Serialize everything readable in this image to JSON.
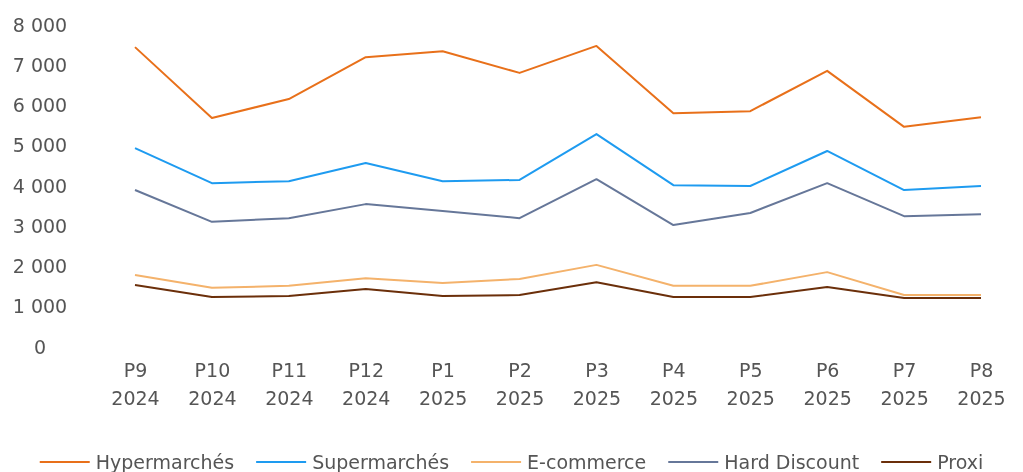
{
  "chart_data": {
    "type": "line",
    "categories": [
      "P9\n2024",
      "P10\n2024",
      "P11\n2024",
      "P12\n2024",
      "P1\n2025",
      "P2\n2025",
      "P3\n2025",
      "P4\n2025",
      "P5\n2025",
      "P6\n2025",
      "P7\n2025",
      "P8\n2025"
    ],
    "series": [
      {
        "name": "Hypermarchés",
        "color": "#e8701a",
        "values": [
          7450,
          5690,
          6160,
          7200,
          7350,
          6810,
          7480,
          5810,
          5860,
          6860,
          5470,
          5710
        ]
      },
      {
        "name": "Supermarchés",
        "color": "#1e9bf0",
        "values": [
          4940,
          4070,
          4120,
          4570,
          4120,
          4150,
          5290,
          4020,
          4000,
          4870,
          3900,
          4000
        ]
      },
      {
        "name": "E-commerce",
        "color": "#f4b26b",
        "values": [
          1790,
          1470,
          1520,
          1710,
          1590,
          1690,
          2040,
          1520,
          1520,
          1860,
          1290,
          1290
        ]
      },
      {
        "name": "Hard Discount",
        "color": "#667799",
        "values": [
          3900,
          3110,
          3200,
          3550,
          3380,
          3200,
          4170,
          3030,
          3330,
          4070,
          3250,
          3300
        ]
      },
      {
        "name": "Proxi",
        "color": "#6b2f0a",
        "values": [
          1540,
          1240,
          1270,
          1440,
          1270,
          1290,
          1610,
          1240,
          1240,
          1490,
          1220,
          1220
        ]
      }
    ],
    "ylim": [
      0,
      8000
    ],
    "yticks": [
      {
        "value": 0,
        "label": "0"
      },
      {
        "value": 1000,
        "label": "1 000"
      },
      {
        "value": 2000,
        "label": "2 000"
      },
      {
        "value": 3000,
        "label": "3 000"
      },
      {
        "value": 4000,
        "label": "4 000"
      },
      {
        "value": 5000,
        "label": "5 000"
      },
      {
        "value": 6000,
        "label": "6 000"
      },
      {
        "value": 7000,
        "label": "7 000"
      },
      {
        "value": 8000,
        "label": "8 000"
      }
    ],
    "grid": false,
    "legend": "bottom",
    "marker": "none",
    "line_style": "solid"
  }
}
